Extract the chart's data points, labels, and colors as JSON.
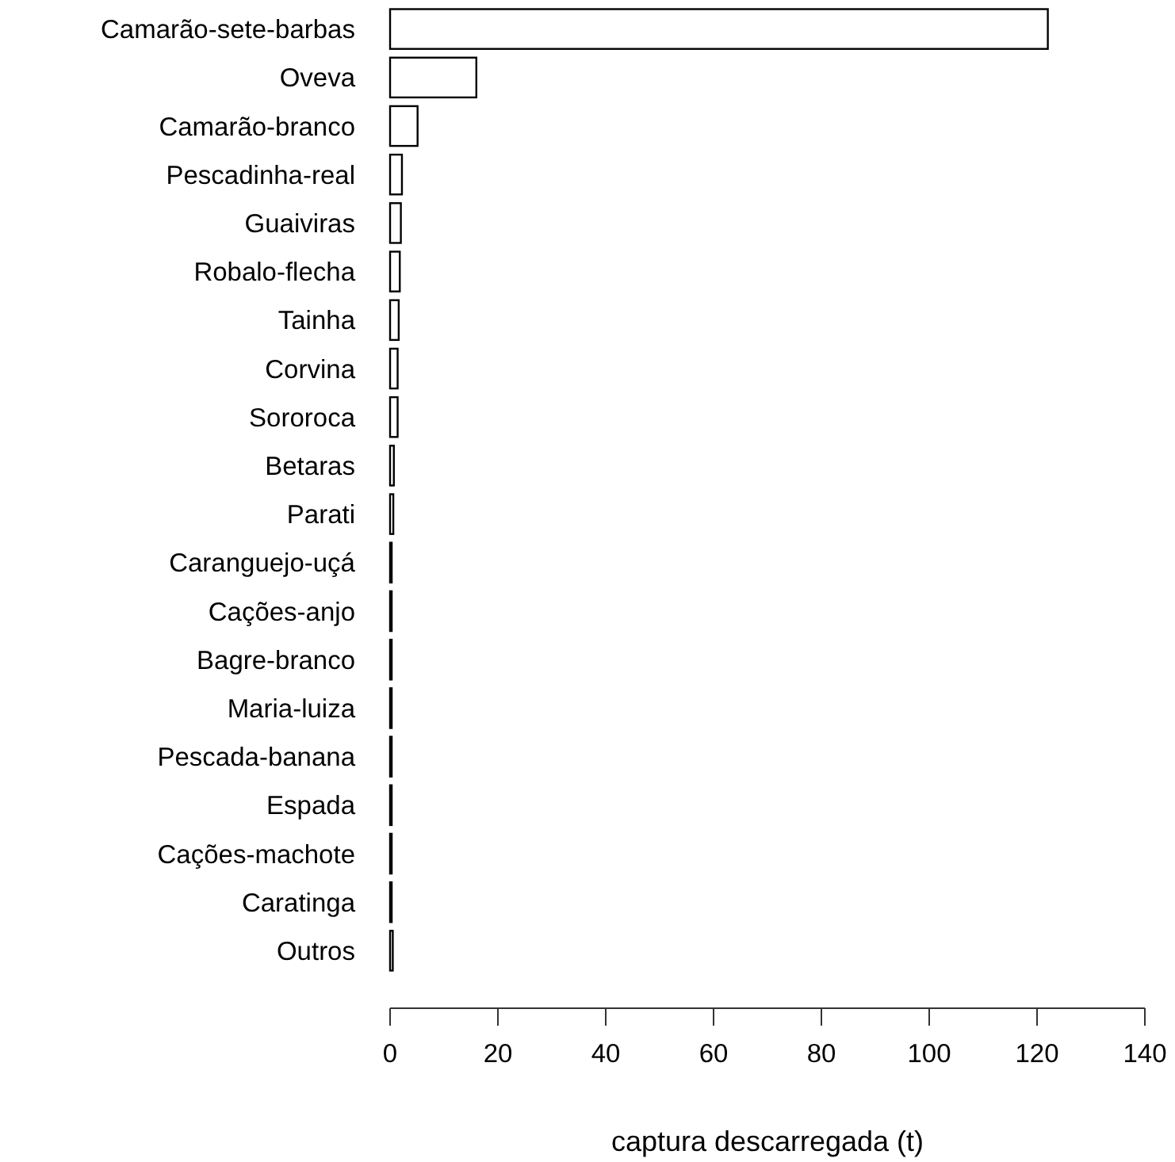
{
  "chart_data": {
    "type": "bar",
    "orientation": "horizontal",
    "xlabel": "captura descarregada (t)",
    "categories": [
      "Camarão-sete-barbas",
      "Oveva",
      "Camarão-branco",
      "Pescadinha-real",
      "Guaiviras",
      "Robalo-flecha",
      "Tainha",
      "Corvina",
      "Sororoca",
      "Betaras",
      "Parati",
      "Caranguejo-uçá",
      "Cações-anjo",
      "Bagre-branco",
      "Maria-luiza",
      "Pescada-banana",
      "Espada",
      "Cações-machote",
      "Caratinga",
      "Outros"
    ],
    "values": [
      122,
      16,
      5.1,
      2.2,
      2.0,
      1.8,
      1.6,
      1.4,
      1.4,
      0.7,
      0.6,
      0.3,
      0.3,
      0.3,
      0.3,
      0.3,
      0.3,
      0.3,
      0.3,
      0.5
    ],
    "color": "#ffffff",
    "xlim": [
      0,
      140
    ],
    "xticks": [
      0,
      20,
      40,
      60,
      80,
      100,
      120,
      140
    ]
  }
}
